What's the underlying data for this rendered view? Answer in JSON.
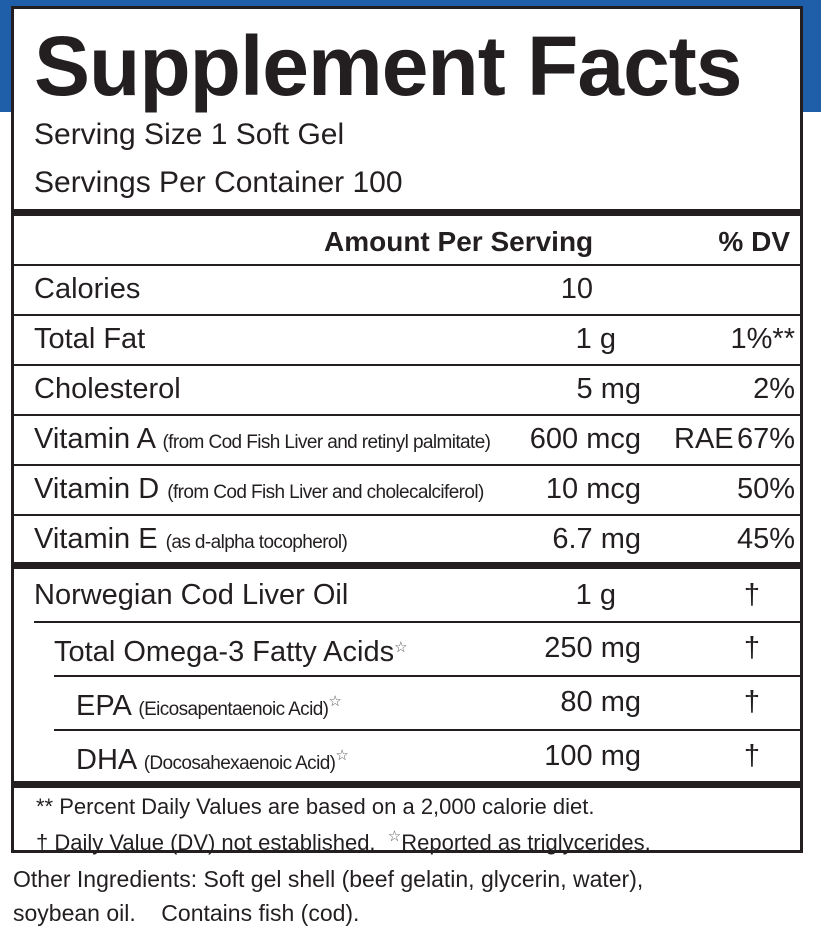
{
  "colors": {
    "accent": "#1f5ea8",
    "text": "#231f20"
  },
  "title": "Supplement Facts",
  "serving_size": "Serving Size 1 Soft Gel",
  "servings_per_container": "Servings Per Container 100",
  "header": {
    "amount": "Amount Per Serving",
    "dv": "% DV"
  },
  "nutrients": [
    {
      "name": "Calories",
      "note": "",
      "amount": "10",
      "dv": ""
    },
    {
      "name": "Total Fat",
      "note": "",
      "amount": "1 g",
      "dv": "1%**"
    },
    {
      "name": "Cholesterol",
      "note": "",
      "amount": "5 mg",
      "dv": "2%"
    },
    {
      "name": "Vitamin A",
      "note": "(from Cod Fish Liver and retinyl palmitate)",
      "amount": "600 mcg",
      "unit_extra": "RAE",
      "dv": "67%"
    },
    {
      "name": "Vitamin D",
      "note": "(from Cod Fish Liver and cholecalciferol)",
      "amount": "10 mcg",
      "dv": "50%"
    },
    {
      "name": "Vitamin E",
      "note": "(as d-alpha tocopherol)",
      "amount": "6.7 mg",
      "dv": "45%"
    }
  ],
  "oils": [
    {
      "name": "Norwegian Cod Liver Oil",
      "note": "",
      "amount": "1 g",
      "dv": "†"
    },
    {
      "name": "Total Omega-3 Fatty Acids",
      "note": "",
      "star": "☆",
      "amount": "250 mg",
      "dv": "†"
    },
    {
      "name": "EPA",
      "note": "(Eicosapentaenoic Acid)",
      "star": "☆",
      "amount": "80 mg",
      "dv": "†"
    },
    {
      "name": "DHA",
      "note": "(Docosahexaenoic Acid)",
      "star": "☆",
      "amount": "100 mg",
      "dv": "†"
    }
  ],
  "footnotes": {
    "line1": "** Percent Daily Values are based on a 2,000 calorie diet.",
    "line2a": "† Daily Value (DV) not established.",
    "line2_star": "☆",
    "line2b": "Reported as triglycerides."
  },
  "other_ingredients": {
    "line1": "Other Ingredients: Soft gel shell (beef gelatin, glycerin, water),",
    "line2": "soybean oil.    Contains fish (cod)."
  }
}
